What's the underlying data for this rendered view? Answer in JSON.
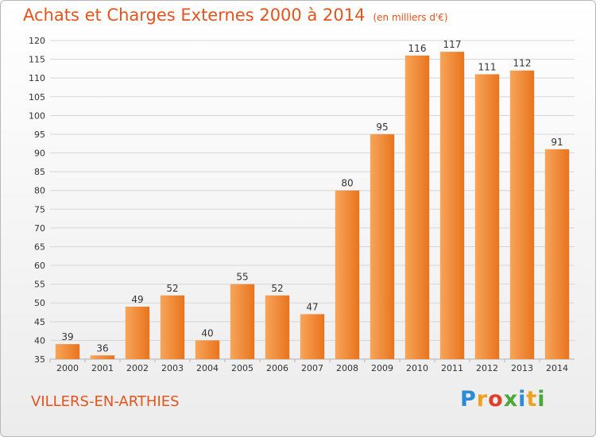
{
  "chart_data": {
    "type": "bar",
    "title": "Achats et Charges Externes 2000 à 2014",
    "subtitle": "(en milliers d'€)",
    "categories": [
      "2000",
      "2001",
      "2002",
      "2003",
      "2004",
      "2005",
      "2006",
      "2007",
      "2008",
      "2009",
      "2010",
      "2011",
      "2012",
      "2013",
      "2014"
    ],
    "values": [
      39,
      36,
      49,
      52,
      40,
      55,
      52,
      47,
      80,
      95,
      116,
      117,
      111,
      112,
      91
    ],
    "ylim": [
      35,
      120
    ],
    "yticks": [
      35,
      40,
      45,
      50,
      55,
      60,
      65,
      70,
      75,
      80,
      85,
      90,
      95,
      100,
      105,
      110,
      115,
      120
    ],
    "grid": true,
    "bar_color": "#f0822a",
    "bar_color_light": "#f7a55a"
  },
  "commune": "VILLERS-EN-ARTHIES",
  "logo": {
    "letters": [
      "P",
      "r",
      "o",
      "x",
      "i",
      "t",
      "i"
    ],
    "colors": [
      "#2c8bd6",
      "#f0a020",
      "#e0402a",
      "#4aa83a",
      "#2c8bd6",
      "#f0a020",
      "#4aa83a"
    ]
  },
  "colors": {
    "accent": "#e3541b",
    "grid": "#d6d6d6",
    "axis_text": "#333333"
  }
}
